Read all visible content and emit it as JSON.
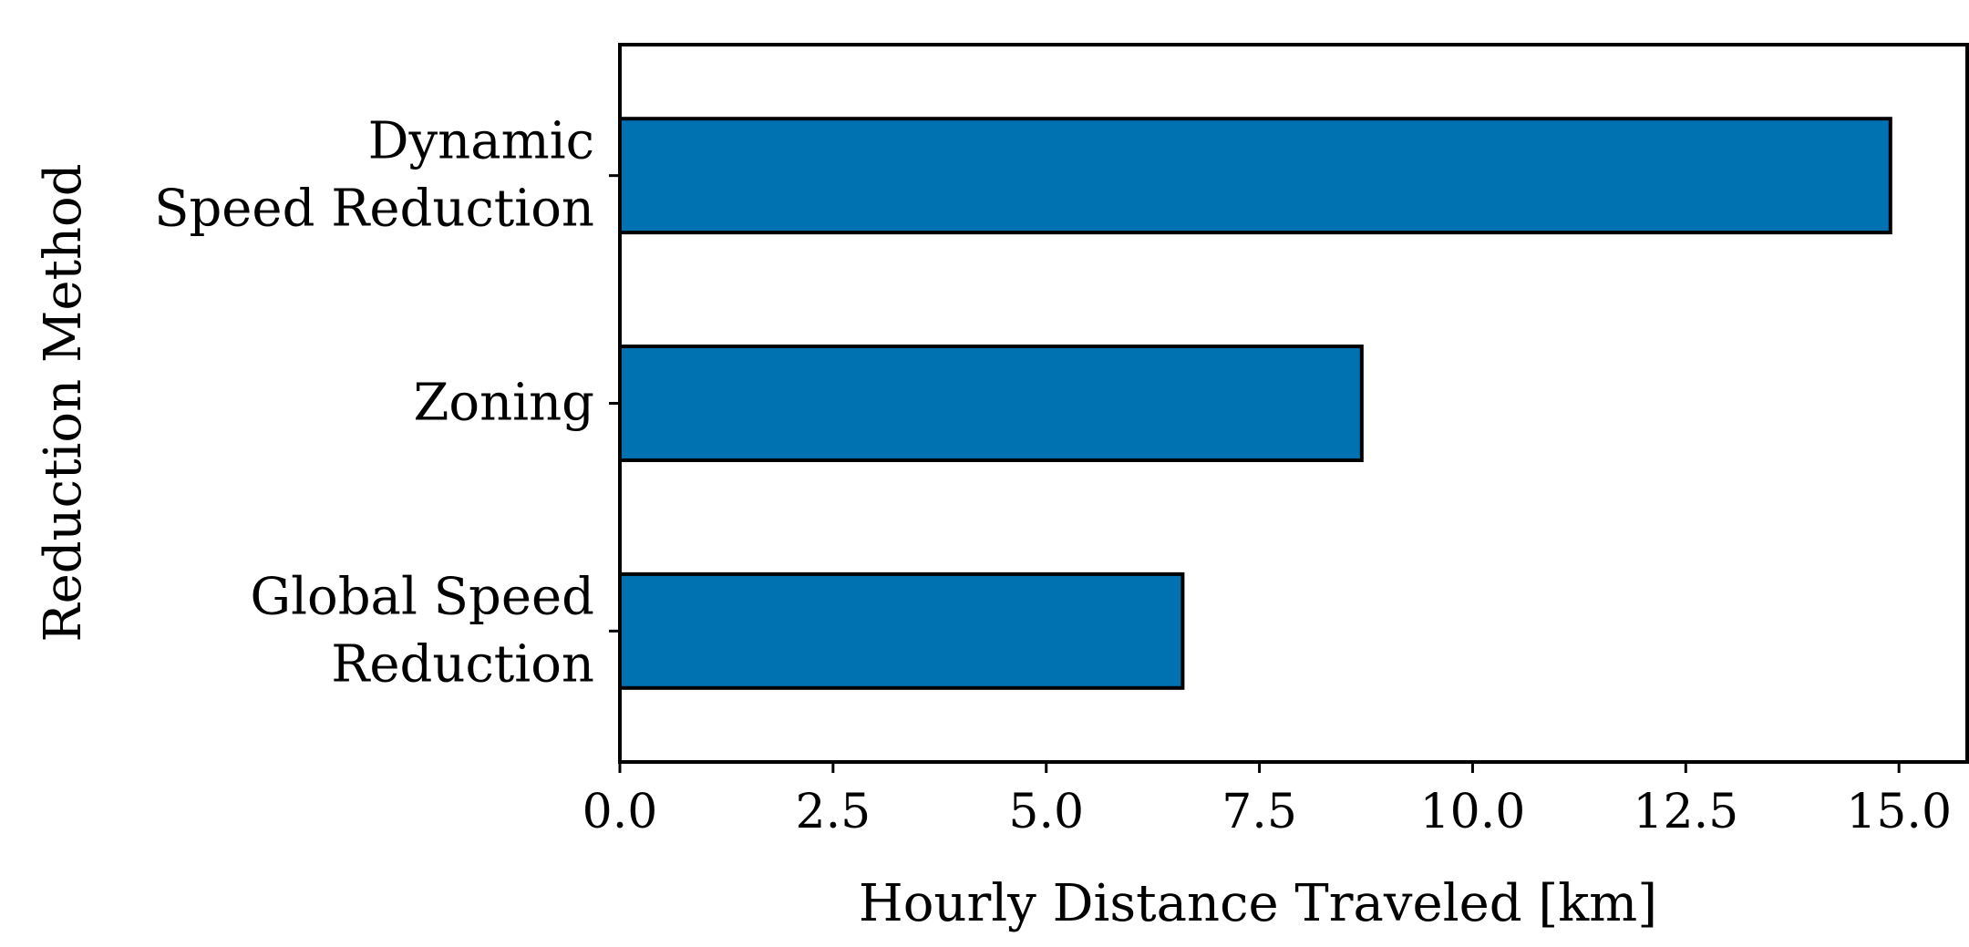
{
  "chart_data": {
    "type": "bar",
    "orientation": "horizontal",
    "categories": [
      "Dynamic Speed Reduction",
      "Zoning",
      "Global Speed Reduction"
    ],
    "category_lines": [
      [
        "Dynamic",
        "Speed Reduction"
      ],
      [
        "Zoning"
      ],
      [
        "Global Speed",
        "Reduction"
      ]
    ],
    "values": [
      14.9,
      8.7,
      6.6
    ],
    "xlabel": "Hourly Distance Traveled [km]",
    "ylabel": "Reduction Method",
    "xlim": [
      0,
      15.8
    ],
    "xticks": [
      0,
      2.5,
      5,
      7.5,
      10,
      12.5,
      15
    ],
    "xtick_labels": [
      "0.0",
      "2.5",
      "5.0",
      "7.5",
      "10.0",
      "12.5",
      "15.0"
    ],
    "grid": false,
    "bar_color": "#0072B2",
    "edge_color": "#000000"
  }
}
